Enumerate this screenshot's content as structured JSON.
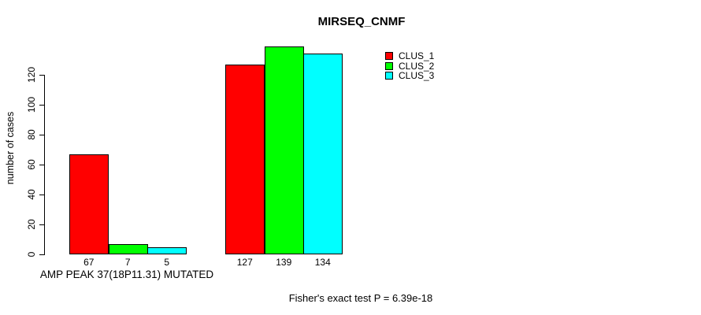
{
  "chart_data": {
    "type": "bar",
    "title": "MIRSEQ_CNMF",
    "ylabel": "number of cases",
    "xlabel": "AMP PEAK 37(18P11.31) MUTATED",
    "annotation": "Fisher's exact test P = 6.39e-18",
    "ylim": [
      0,
      120
    ],
    "yticks": [
      0,
      20,
      40,
      60,
      80,
      100,
      120
    ],
    "grid": false,
    "legend_position": "top-right",
    "group_labels": [
      "AMP PEAK 37(18P11.31) MUTATED",
      ""
    ],
    "series": [
      {
        "name": "CLUS_1",
        "color": "#ff0000",
        "values": [
          67,
          127
        ]
      },
      {
        "name": "CLUS_2",
        "color": "#00ff00",
        "values": [
          7,
          139
        ]
      },
      {
        "name": "CLUS_3",
        "color": "#00ffff",
        "values": [
          5,
          134
        ]
      }
    ],
    "bar_labels": [
      [
        67,
        7,
        5
      ],
      [
        127,
        139,
        134
      ]
    ],
    "colors": {
      "background": "#ffffff",
      "text": "#000000",
      "bar_border": "#000000"
    }
  }
}
